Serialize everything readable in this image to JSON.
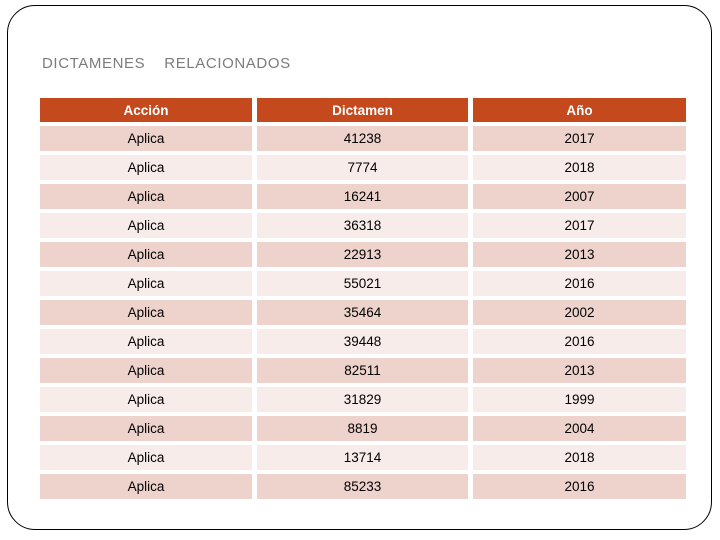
{
  "slide": {
    "title": "DICTAMENES    RELACIONADOS"
  },
  "table": {
    "headers": [
      "Acción",
      "Dictamen",
      "Año"
    ],
    "rows": [
      {
        "accion": "Aplica",
        "dictamen": "41238",
        "ano": "2017"
      },
      {
        "accion": "Aplica",
        "dictamen": "7774",
        "ano": "2018"
      },
      {
        "accion": "Aplica",
        "dictamen": "16241",
        "ano": "2007"
      },
      {
        "accion": "Aplica",
        "dictamen": "36318",
        "ano": "2017"
      },
      {
        "accion": "Aplica",
        "dictamen": "22913",
        "ano": "2013"
      },
      {
        "accion": "Aplica",
        "dictamen": "55021",
        "ano": "2016"
      },
      {
        "accion": "Aplica",
        "dictamen": "35464",
        "ano": "2002"
      },
      {
        "accion": "Aplica",
        "dictamen": "39448",
        "ano": "2016"
      },
      {
        "accion": "Aplica",
        "dictamen": "82511",
        "ano": "2013"
      },
      {
        "accion": "Aplica",
        "dictamen": "31829",
        "ano": "1999"
      },
      {
        "accion": "Aplica",
        "dictamen": "8819",
        "ano": "2004"
      },
      {
        "accion": "Aplica",
        "dictamen": "13714",
        "ano": "2018"
      },
      {
        "accion": "Aplica",
        "dictamen": "85233",
        "ano": "2016"
      }
    ]
  },
  "colors": {
    "header_bg": "#c4491c",
    "header_text": "#ffffff",
    "row_dark": "#eed3cc",
    "row_light": "#f8ecea",
    "cell_text": "#000000",
    "title_text": "#7c7c7c",
    "slide_border": "#000000"
  }
}
